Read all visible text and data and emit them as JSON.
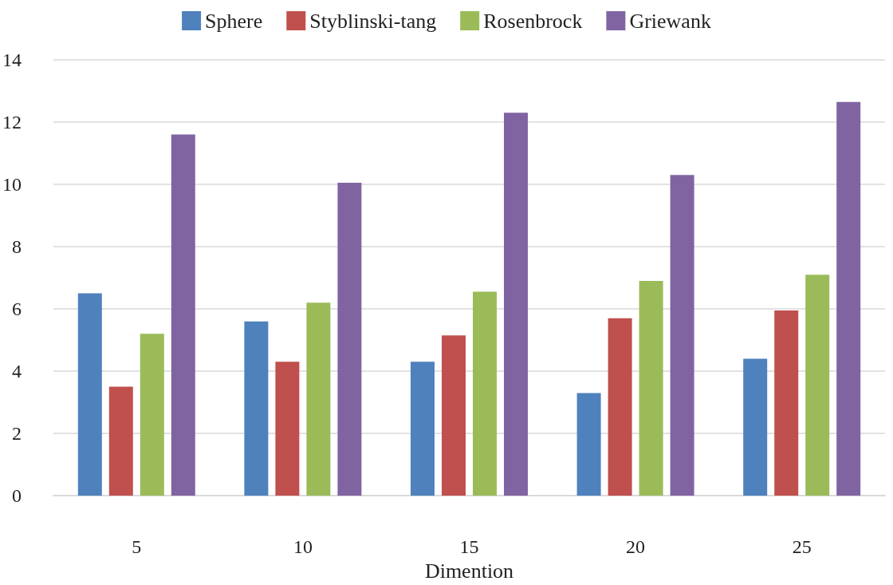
{
  "chart_data": {
    "type": "bar",
    "xlabel": "Dimention",
    "categories": [
      "5",
      "10",
      "15",
      "20",
      "25"
    ],
    "series": [
      {
        "name": "Sphere",
        "color": "#4f81bd",
        "values": [
          6.5,
          5.6,
          4.3,
          3.3,
          4.4
        ]
      },
      {
        "name": "Styblinski-tang",
        "color": "#c0504d",
        "values": [
          3.5,
          4.3,
          5.15,
          5.7,
          5.95
        ]
      },
      {
        "name": "Rosenbrock",
        "color": "#9bbb59",
        "values": [
          5.2,
          6.2,
          6.55,
          6.9,
          7.1
        ]
      },
      {
        "name": "Griewank",
        "color": "#8064a2",
        "values": [
          11.6,
          10.05,
          12.3,
          10.3,
          12.65
        ]
      }
    ],
    "ylim": [
      0,
      14
    ],
    "yticks": [
      0,
      2,
      4,
      6,
      8,
      10,
      12,
      14
    ],
    "grid": "y",
    "legend": "top"
  }
}
